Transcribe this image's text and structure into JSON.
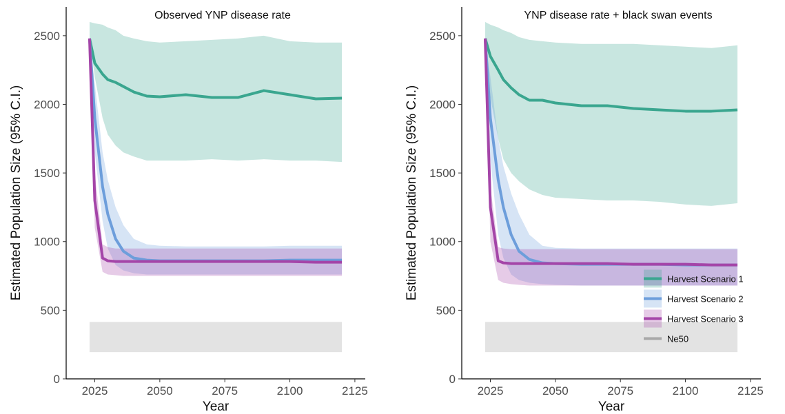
{
  "chart_data": [
    {
      "type": "line",
      "title": "Observed YNP disease rate",
      "x_label": "Year",
      "y_label": "Estimated Population Size (95% C.I.)",
      "xlim": [
        2014,
        2129
      ],
      "ylim": [
        0,
        2710
      ],
      "xticks": [
        2025,
        2050,
        2075,
        2100,
        2125
      ],
      "yticks": [
        0,
        500,
        1000,
        1500,
        2000,
        2500
      ],
      "x": [
        2023,
        2025,
        2028,
        2030,
        2033,
        2036,
        2040,
        2045,
        2050,
        2060,
        2070,
        2080,
        2090,
        2100,
        2110,
        2120
      ],
      "reference_band": {
        "color": "#e3e3e3",
        "lower": 195,
        "upper": 415
      },
      "series": [
        {
          "color": "#3aa68f",
          "values": [
            2480,
            2300,
            2220,
            2180,
            2160,
            2130,
            2090,
            2060,
            2055,
            2070,
            2050,
            2050,
            2100,
            2070,
            2040,
            2045
          ],
          "lower": [
            2480,
            2200,
            1900,
            1780,
            1700,
            1650,
            1620,
            1590,
            1590,
            1590,
            1600,
            1590,
            1600,
            1590,
            1590,
            1580
          ],
          "upper": [
            2600,
            2590,
            2580,
            2560,
            2540,
            2500,
            2480,
            2460,
            2450,
            2460,
            2470,
            2480,
            2500,
            2460,
            2450,
            2450
          ]
        },
        {
          "color": "#6d9edb",
          "values": [
            2480,
            1900,
            1400,
            1200,
            1020,
            930,
            880,
            865,
            860,
            860,
            860,
            860,
            860,
            865,
            865,
            865
          ],
          "lower": [
            2480,
            1650,
            1150,
            950,
            830,
            790,
            770,
            760,
            760,
            760,
            760,
            760,
            760,
            760,
            760,
            760
          ],
          "upper": [
            2480,
            2150,
            1650,
            1450,
            1250,
            1120,
            1020,
            980,
            970,
            965,
            965,
            965,
            965,
            970,
            970,
            970
          ]
        },
        {
          "color": "#a445a8",
          "values": [
            2480,
            1300,
            880,
            860,
            855,
            855,
            855,
            855,
            855,
            855,
            855,
            855,
            855,
            855,
            850,
            850
          ],
          "lower": [
            2480,
            1100,
            780,
            760,
            755,
            750,
            750,
            750,
            750,
            750,
            750,
            750,
            750,
            750,
            750,
            750
          ],
          "upper": [
            2480,
            1500,
            980,
            960,
            950,
            950,
            950,
            950,
            950,
            950,
            950,
            950,
            950,
            950,
            950,
            950
          ]
        }
      ]
    },
    {
      "type": "line",
      "title": "YNP disease rate + black swan events",
      "x_label": "Year",
      "y_label": "Estimated Population Size (95% C.I.)",
      "xlim": [
        2014,
        2129
      ],
      "ylim": [
        0,
        2710
      ],
      "xticks": [
        2025,
        2050,
        2075,
        2100,
        2125
      ],
      "yticks": [
        0,
        500,
        1000,
        1500,
        2000,
        2500
      ],
      "x": [
        2023,
        2025,
        2028,
        2030,
        2033,
        2036,
        2040,
        2045,
        2050,
        2060,
        2070,
        2080,
        2090,
        2100,
        2110,
        2120
      ],
      "legend": "lower right",
      "reference_band": {
        "name": "Ne50",
        "color": "#e3e3e3",
        "lower": 195,
        "upper": 415
      },
      "series": [
        {
          "name": "Harvest Scenario 1",
          "color": "#3aa68f",
          "values": [
            2480,
            2350,
            2250,
            2180,
            2120,
            2070,
            2030,
            2030,
            2010,
            1990,
            1990,
            1970,
            1960,
            1950,
            1950,
            1960
          ],
          "lower": [
            2480,
            2050,
            1750,
            1600,
            1500,
            1440,
            1380,
            1340,
            1320,
            1310,
            1300,
            1300,
            1290,
            1270,
            1260,
            1280
          ],
          "upper": [
            2600,
            2580,
            2560,
            2540,
            2520,
            2490,
            2470,
            2460,
            2450,
            2440,
            2440,
            2440,
            2430,
            2420,
            2410,
            2430
          ]
        },
        {
          "name": "Harvest Scenario 2",
          "color": "#6d9edb",
          "values": [
            2480,
            1900,
            1450,
            1250,
            1050,
            930,
            870,
            845,
            840,
            835,
            835,
            835,
            835,
            830,
            830,
            830
          ],
          "lower": [
            2480,
            1600,
            1050,
            880,
            760,
            720,
            700,
            690,
            685,
            680,
            680,
            680,
            680,
            680,
            680,
            680
          ],
          "upper": [
            2480,
            2200,
            1750,
            1550,
            1350,
            1200,
            1050,
            970,
            955,
            950,
            950,
            950,
            950,
            950,
            950,
            950
          ]
        },
        {
          "name": "Harvest Scenario 3",
          "color": "#a445a8",
          "values": [
            2480,
            1250,
            860,
            845,
            840,
            840,
            840,
            840,
            840,
            840,
            840,
            835,
            835,
            835,
            830,
            830
          ],
          "lower": [
            2480,
            1000,
            720,
            700,
            690,
            685,
            680,
            680,
            680,
            680,
            680,
            680,
            680,
            680,
            680,
            680
          ],
          "upper": [
            2480,
            1400,
            960,
            950,
            945,
            945,
            945,
            945,
            945,
            945,
            945,
            945,
            945,
            945,
            945,
            945
          ]
        }
      ]
    }
  ]
}
